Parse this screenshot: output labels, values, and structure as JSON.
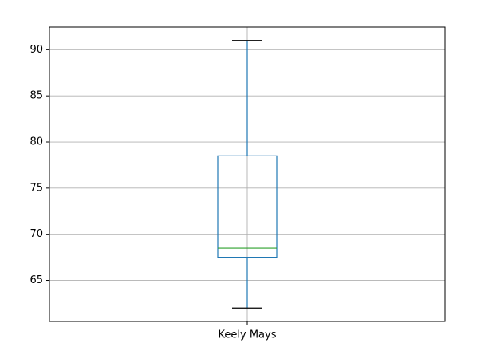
{
  "chart_data": {
    "type": "box",
    "title": "",
    "xlabel": "",
    "ylabel": "",
    "categories": [
      "Keely Mays"
    ],
    "boxes": [
      {
        "category": "Keely Mays",
        "whisker_low": 62,
        "q1": 67.5,
        "median": 68.5,
        "q3": 78.5,
        "whisker_high": 91
      }
    ],
    "ylim": [
      60.55,
      92.45
    ],
    "yticks": [
      65,
      70,
      75,
      80,
      85,
      90
    ],
    "grid": true,
    "colors": {
      "box": "#1f77b4",
      "median": "#2ca02c",
      "whisker_cap": "#000000",
      "grid": "#b0b0b0"
    }
  }
}
